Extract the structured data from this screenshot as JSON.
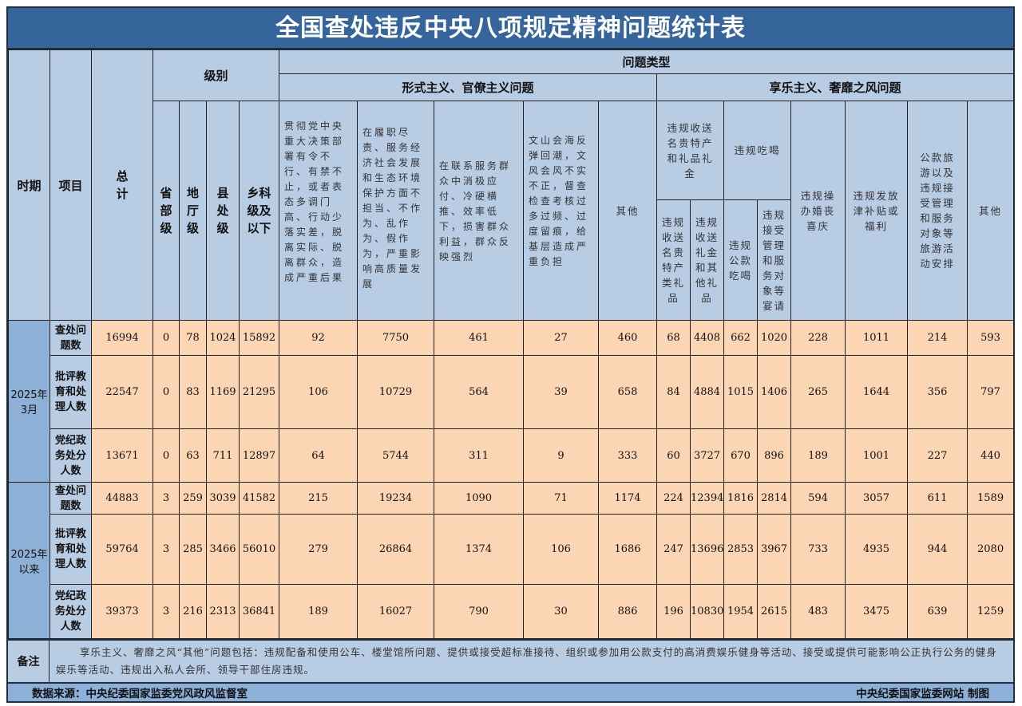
{
  "title": "全国查处违反中央八项规定精神问题统计表",
  "headers": {
    "period": "时期",
    "item": "项目",
    "total": "总计",
    "level": "级别",
    "levels": [
      "省部级",
      "地厅级",
      "县处级",
      "乡科级及以下"
    ],
    "problem_type": "问题类型",
    "formalism": "形式主义、官僚主义问题",
    "hedonism": "享乐主义、奢靡之风问题",
    "formalism_cols": [
      "贯彻党中央重大决策部署有令不行、有禁不止，或者表态多调门高、行动少落实差，脱离实际、脱离群众，造成严重后果",
      "在履职尽责、服务经济社会发展和生态环境保护方面不担当、不作为、乱作为、假作为，严重影响高质量发展",
      "在联系服务群众中消极应付、冷硬横推、效率低下，损害群众利益，群众反映强烈",
      "文山会海反弹回潮，文风会风不实不正，督查检查考核过多过频、过度留痕，给基层造成严重负担",
      "其他"
    ],
    "gifts": "违规收送名贵特产和礼品礼金",
    "gifts_sub": [
      "违规收送名贵特产类礼品",
      "违规收送礼金和其他礼品"
    ],
    "dining": "违规吃喝",
    "dining_sub": [
      "违规公款吃喝",
      "违规接受管理和服务对象等宴请"
    ],
    "weddings": "违规操办婚丧喜庆",
    "allowances": "违规发放津补贴或福利",
    "travel": "公款旅游以及违规接受管理和服务对象等旅游活动安排",
    "other": "其他"
  },
  "periods": [
    {
      "label": "2025年3月",
      "rows": [
        {
          "item": "查处问题数",
          "values": [
            "16994",
            "0",
            "78",
            "1024",
            "15892",
            "92",
            "7750",
            "461",
            "27",
            "460",
            "68",
            "4408",
            "662",
            "1020",
            "228",
            "1011",
            "214",
            "593"
          ]
        },
        {
          "item": "批评教育和处理人数",
          "values": [
            "22547",
            "0",
            "83",
            "1169",
            "21295",
            "106",
            "10729",
            "564",
            "39",
            "658",
            "84",
            "4884",
            "1015",
            "1406",
            "265",
            "1644",
            "356",
            "797"
          ]
        },
        {
          "item": "党纪政务处分人数",
          "values": [
            "13671",
            "0",
            "63",
            "711",
            "12897",
            "64",
            "5744",
            "311",
            "9",
            "333",
            "60",
            "3727",
            "670",
            "896",
            "189",
            "1001",
            "227",
            "440"
          ]
        }
      ]
    },
    {
      "label": "2025年以来",
      "rows": [
        {
          "item": "查处问题数",
          "values": [
            "44883",
            "3",
            "259",
            "3039",
            "41582",
            "215",
            "19234",
            "1090",
            "71",
            "1174",
            "224",
            "12394",
            "1816",
            "2814",
            "594",
            "3057",
            "611",
            "1589"
          ]
        },
        {
          "item": "批评教育和处理人数",
          "values": [
            "59764",
            "3",
            "285",
            "3466",
            "56010",
            "279",
            "26864",
            "1374",
            "106",
            "1686",
            "247",
            "13696",
            "2853",
            "3967",
            "733",
            "4935",
            "944",
            "2080"
          ]
        },
        {
          "item": "党纪政务处分人数",
          "values": [
            "39373",
            "3",
            "216",
            "2313",
            "36841",
            "189",
            "16027",
            "790",
            "30",
            "886",
            "196",
            "10830",
            "1954",
            "2615",
            "483",
            "3475",
            "639",
            "1259"
          ]
        }
      ]
    }
  ],
  "note": {
    "label": "备注",
    "text": "享乐主义、奢靡之风“其他”问题包括：违规配备和使用公车、楼堂馆所问题、提供或接受超标准接待、组织或参加用公款支付的高消费娱乐健身等活动、接受或提供可能影响公正执行公务的健身娱乐等活动、违规出入私人会所、领导干部住房违规。"
  },
  "footer": {
    "source": "数据来源：中央纪委国家监委党风政风监督室",
    "credit": "中央纪委国家监委网站 制图"
  },
  "colors": {
    "title_bg": "#36659c",
    "header_bg": "#b8cce4",
    "data_bg": "#fcd5b4",
    "period_bg": "#8fb0d6"
  }
}
